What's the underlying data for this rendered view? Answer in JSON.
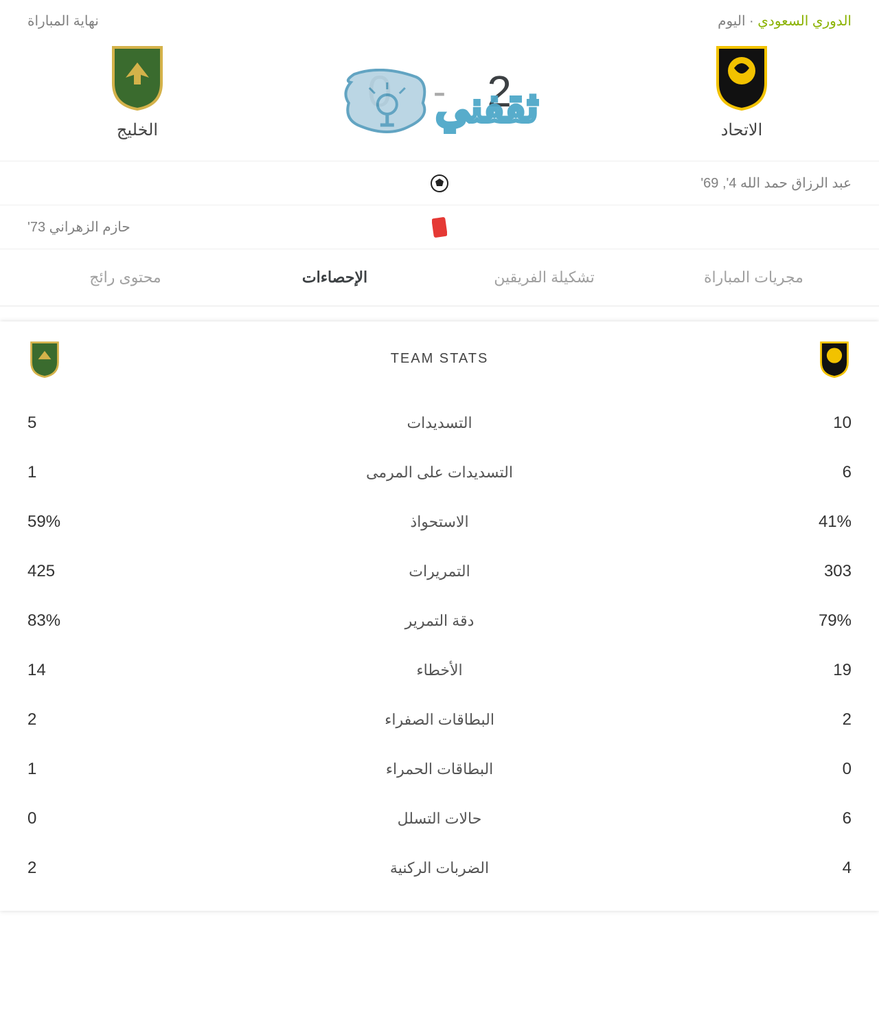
{
  "header": {
    "league": "الدوري السعودي",
    "date_suffix": " · اليوم",
    "status": "نهاية المباراة",
    "league_color": "#8ab200",
    "suffix_color": "#808080"
  },
  "home": {
    "name": "الاتحاد",
    "score": "2",
    "badge_colors": {
      "shield": "#111111",
      "accent": "#f2c200"
    }
  },
  "away": {
    "name": "الخليج",
    "score": "0",
    "badge_colors": {
      "shield": "#3a6b2e",
      "accent": "#d4b24a"
    }
  },
  "score_dash": "-",
  "events": [
    {
      "icon": "goal",
      "home_text": "عبد الرزاق حمد الله 4', 69'",
      "away_text": ""
    },
    {
      "icon": "red-card",
      "home_text": "",
      "away_text": "حازم الزهراني 73'"
    }
  ],
  "tabs": [
    {
      "id": "timeline",
      "label": "مجريات المباراة",
      "active": false
    },
    {
      "id": "lineups",
      "label": "تشكيلة الفريقين",
      "active": false
    },
    {
      "id": "stats",
      "label": "الإحصاءات",
      "active": true
    },
    {
      "id": "trending",
      "label": "محتوى رائج",
      "active": false
    }
  ],
  "stats": {
    "title": "TEAM STATS",
    "rows": [
      {
        "label": "التسديدات",
        "home": "10",
        "away": "5"
      },
      {
        "label": "التسديدات على المرمى",
        "home": "6",
        "away": "1"
      },
      {
        "label": "الاستحواذ",
        "home": "41%",
        "away": "59%"
      },
      {
        "label": "التمريرات",
        "home": "303",
        "away": "425"
      },
      {
        "label": "دقة التمرير",
        "home": "79%",
        "away": "83%"
      },
      {
        "label": "الأخطاء",
        "home": "19",
        "away": "14"
      },
      {
        "label": "البطاقات الصفراء",
        "home": "2",
        "away": "2"
      },
      {
        "label": "البطاقات الحمراء",
        "home": "0",
        "away": "1"
      },
      {
        "label": "حالات التسلل",
        "home": "6",
        "away": "0"
      },
      {
        "label": "الضربات الركنية",
        "home": "4",
        "away": "2"
      }
    ]
  },
  "watermark": {
    "text": "ثقفني"
  },
  "colors": {
    "red_card": "#e53935",
    "ball": "#222222"
  }
}
